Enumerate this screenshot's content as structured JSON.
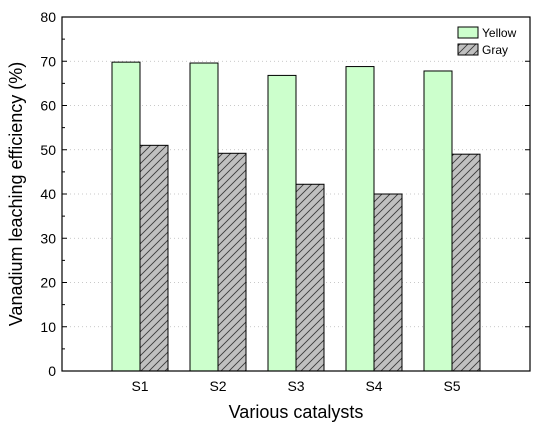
{
  "chart_data": {
    "type": "bar",
    "title": "",
    "xlabel": "Various catalysts",
    "ylabel": "Vanadium leaching efficiency (%)",
    "categories": [
      "S1",
      "S2",
      "S3",
      "S4",
      "S5"
    ],
    "series": [
      {
        "name": "Yellow",
        "values": [
          69.8,
          69.6,
          66.8,
          68.8,
          67.8
        ],
        "color": "#ccffcc",
        "pattern": "solid"
      },
      {
        "name": "Gray",
        "values": [
          51.0,
          49.2,
          42.2,
          40.0,
          49.0
        ],
        "color": "#c0c0c0",
        "pattern": "diagonal-hatch"
      }
    ],
    "ylim": [
      0,
      80
    ],
    "yticks": [
      "0",
      "10",
      "20",
      "30",
      "40",
      "50",
      "60",
      "70",
      "80"
    ],
    "grid": "horizontal-dotted",
    "legend_position": "top-right"
  }
}
